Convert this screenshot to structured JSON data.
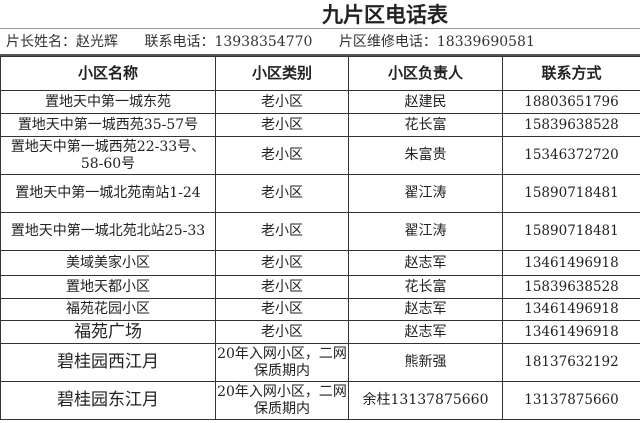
{
  "title": "九片区电话表",
  "info": {
    "leader": "片长姓名：赵光辉",
    "phone": "联系电话：13938354770",
    "repair": "片区维修电话：18339690581"
  },
  "headers": [
    "小区名称",
    "小区类别",
    "小区负责人",
    "联系方式"
  ],
  "rows": [
    [
      "置地天中第一城东苑",
      "老小区",
      "赵建民",
      "18803651796"
    ],
    [
      "置地天中第一城西苑35-57号",
      "老小区",
      "花长富",
      "15839638528"
    ],
    [
      "置地天中第一城西苑22-33号、58-60号",
      "老小区",
      "朱富贵",
      "15346372720"
    ],
    [
      "置地天中第一城北苑南站1-24",
      "老小区",
      "翟江涛",
      "15890718481"
    ],
    [
      "置地天中第一城北苑北站25-33",
      "老小区",
      "翟江涛",
      "15890718481"
    ],
    [
      "美域美家小区",
      "老小区",
      "赵志军",
      "13461496918"
    ],
    [
      "置地天都小区",
      "老小区",
      "花长富",
      "15839638528"
    ],
    [
      "福苑花园小区",
      "老小区",
      "赵志军",
      "13461496918"
    ],
    [
      "福苑广场",
      "老小区",
      "赵志军",
      "13461496918"
    ],
    [
      "碧桂园西江月",
      "20年入网小区，二网保质期内",
      "熊新强",
      "18137632192"
    ],
    [
      "碧桂园东江月",
      "20年入网小区，二网保质期内",
      "余柱13137875660",
      "13137875660"
    ]
  ]
}
